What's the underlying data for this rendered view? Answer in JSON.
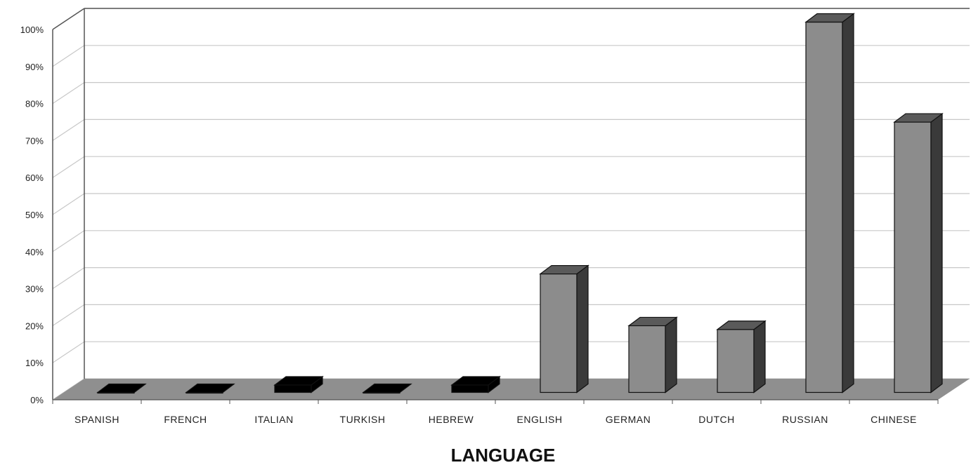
{
  "chart_data": {
    "type": "bar",
    "style": "3d-column",
    "title": "",
    "xlabel": "LANGUAGE",
    "ylabel": "",
    "ylim": [
      0,
      100
    ],
    "y_ticks": [
      "0%",
      "10%",
      "20%",
      "30%",
      "40%",
      "50%",
      "60%",
      "70%",
      "80%",
      "90%",
      "100%"
    ],
    "grid": true,
    "categories": [
      "SPANISH",
      "FRENCH",
      "ITALIAN",
      "TURKISH",
      "HEBREW",
      "ENGLISH",
      "GERMAN",
      "DUTCH",
      "RUSSIAN",
      "CHINESE"
    ],
    "values": [
      0,
      0,
      2,
      0,
      2,
      32,
      18,
      17,
      100,
      73
    ],
    "colors": {
      "bar_front": "#8c8c8c",
      "bar_side": "#3a3a3a",
      "bar_top": "#5a5a5a",
      "bar_small": "#000000",
      "floor": "#8f8f8f",
      "grid": "#c8c8c8",
      "frame": "#555555"
    }
  }
}
